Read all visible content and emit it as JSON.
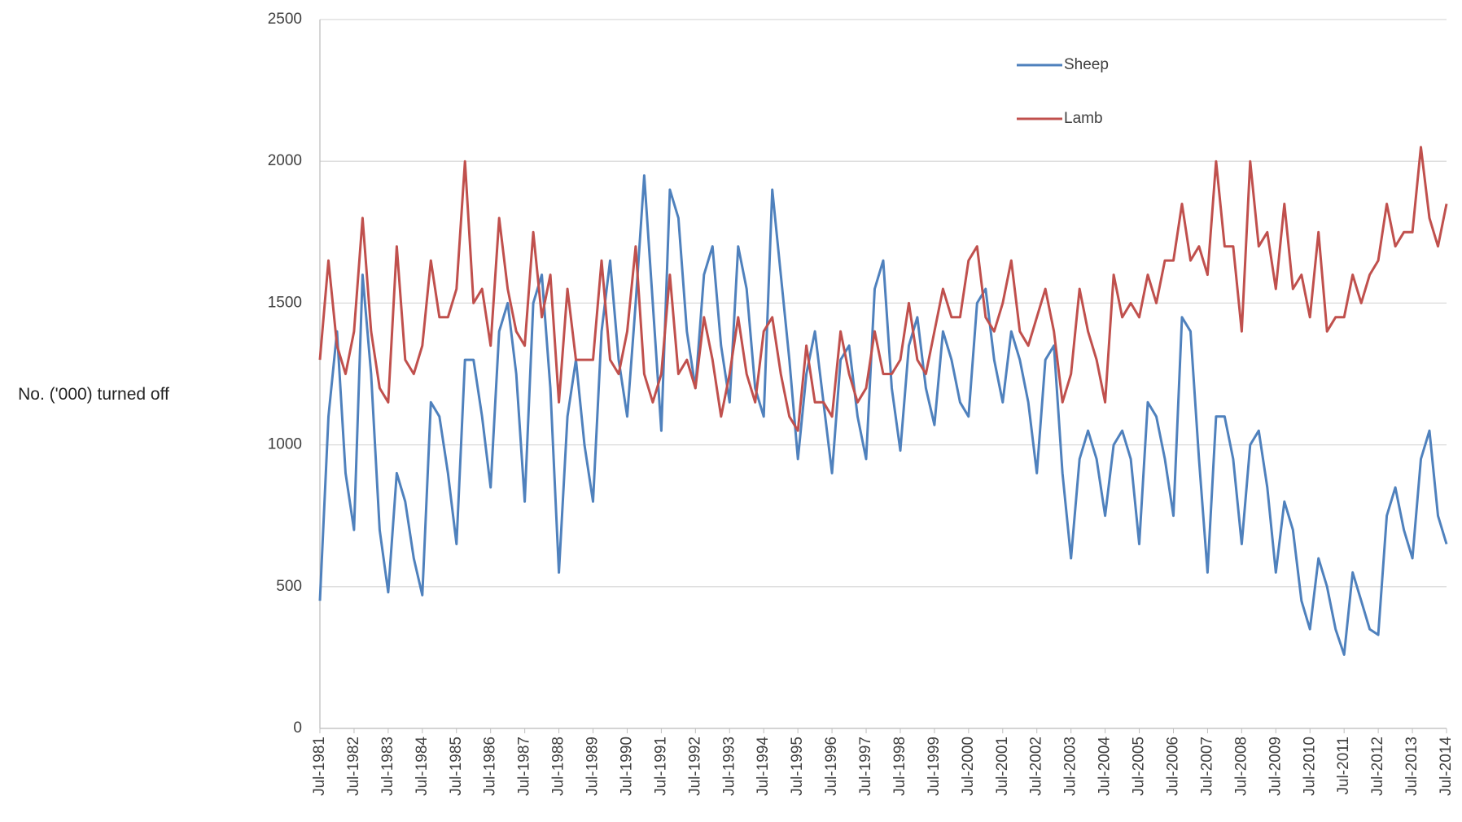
{
  "chart_data": {
    "type": "line",
    "y_label": "No. ('000) turned off",
    "categories": [
      "Jul-1981",
      null,
      null,
      null,
      "Jul-1982",
      null,
      null,
      null,
      "Jul-1983",
      null,
      null,
      null,
      "Jul-1984",
      null,
      null,
      null,
      "Jul-1985",
      null,
      null,
      null,
      "Jul-1986",
      null,
      null,
      null,
      "Jul-1987",
      null,
      null,
      null,
      "Jul-1988",
      null,
      null,
      null,
      "Jul-1989",
      null,
      null,
      null,
      "Jul-1990",
      null,
      null,
      null,
      "Jul-1991",
      null,
      null,
      null,
      "Jul-1992",
      null,
      null,
      null,
      "Jul-1993",
      null,
      null,
      null,
      "Jul-1994",
      null,
      null,
      null,
      "Jul-1995",
      null,
      null,
      null,
      "Jul-1996",
      null,
      null,
      null,
      "Jul-1997",
      null,
      null,
      null,
      "Jul-1998",
      null,
      null,
      null,
      "Jul-1999",
      null,
      null,
      null,
      "Jul-2000",
      null,
      null,
      null,
      "Jul-2001",
      null,
      null,
      null,
      "Jul-2002",
      null,
      null,
      null,
      "Jul-2003",
      null,
      null,
      null,
      "Jul-2004",
      null,
      null,
      null,
      "Jul-2005",
      null,
      null,
      null,
      "Jul-2006",
      null,
      null,
      null,
      "Jul-2007",
      null,
      null,
      null,
      "Jul-2008",
      null,
      null,
      null,
      "Jul-2009",
      null,
      null,
      null,
      "Jul-2010",
      null,
      null,
      null,
      "Jul-2011",
      null,
      null,
      null,
      "Jul-2012",
      null,
      null,
      null,
      "Jul-2013",
      null,
      null,
      null,
      "Jul-2014"
    ],
    "series": [
      {
        "name": "Sheep",
        "color": "#4f81bd",
        "values": [
          450,
          1100,
          1400,
          900,
          700,
          1600,
          1250,
          700,
          480,
          900,
          800,
          600,
          470,
          1150,
          1100,
          900,
          650,
          1300,
          1300,
          1100,
          850,
          1400,
          1500,
          1250,
          800,
          1500,
          1600,
          1200,
          550,
          1100,
          1300,
          1000,
          800,
          1400,
          1650,
          1300,
          1100,
          1500,
          1950,
          1500,
          1050,
          1900,
          1800,
          1400,
          1200,
          1600,
          1700,
          1350,
          1150,
          1700,
          1550,
          1200,
          1100,
          1900,
          1600,
          1300,
          950,
          1250,
          1400,
          1150,
          900,
          1300,
          1350,
          1100,
          950,
          1550,
          1650,
          1200,
          980,
          1350,
          1450,
          1200,
          1070,
          1400,
          1300,
          1150,
          1100,
          1500,
          1550,
          1300,
          1150,
          1400,
          1300,
          1150,
          900,
          1300,
          1350,
          900,
          600,
          950,
          1050,
          950,
          750,
          1000,
          1050,
          950,
          650,
          1150,
          1100,
          950,
          750,
          1450,
          1400,
          950,
          550,
          1100,
          1100,
          950,
          650,
          1000,
          1050,
          850,
          550,
          800,
          700,
          450,
          350,
          600,
          500,
          350,
          260,
          550,
          450,
          350,
          330,
          750,
          850,
          700,
          600,
          950,
          1050,
          750,
          650
        ]
      },
      {
        "name": "Lamb",
        "color": "#c0504d",
        "values": [
          1300,
          1650,
          1350,
          1250,
          1400,
          1800,
          1400,
          1200,
          1150,
          1700,
          1300,
          1250,
          1350,
          1650,
          1450,
          1450,
          1550,
          2000,
          1500,
          1550,
          1350,
          1800,
          1550,
          1400,
          1350,
          1750,
          1450,
          1600,
          1150,
          1550,
          1300,
          1300,
          1300,
          1650,
          1300,
          1250,
          1400,
          1700,
          1250,
          1150,
          1250,
          1600,
          1250,
          1300,
          1200,
          1450,
          1300,
          1100,
          1250,
          1450,
          1250,
          1150,
          1400,
          1450,
          1250,
          1100,
          1050,
          1350,
          1150,
          1150,
          1100,
          1400,
          1250,
          1150,
          1200,
          1400,
          1250,
          1250,
          1300,
          1500,
          1300,
          1250,
          1400,
          1550,
          1450,
          1450,
          1650,
          1700,
          1450,
          1400,
          1500,
          1650,
          1400,
          1350,
          1450,
          1550,
          1400,
          1150,
          1250,
          1550,
          1400,
          1300,
          1150,
          1600,
          1450,
          1500,
          1450,
          1600,
          1500,
          1650,
          1650,
          1850,
          1650,
          1700,
          1600,
          2000,
          1700,
          1700,
          1400,
          2000,
          1700,
          1750,
          1550,
          1850,
          1550,
          1600,
          1450,
          1750,
          1400,
          1450,
          1450,
          1600,
          1500,
          1600,
          1650,
          1850,
          1700,
          1750,
          1750,
          2050,
          1800,
          1700,
          1850
        ]
      }
    ],
    "ylim": [
      0,
      2500
    ],
    "yticks": [
      0,
      500,
      1000,
      1500,
      2000,
      2500
    ],
    "grid": true
  }
}
